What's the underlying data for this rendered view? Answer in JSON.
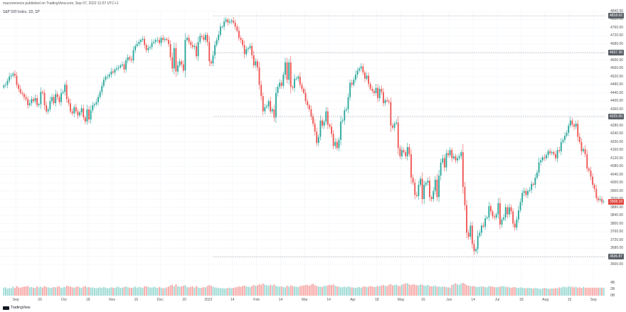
{
  "header": {
    "publisher": "macrorenecis published on TradingView.com, Sep 07, 2022 11:07 UTC+1",
    "symbol": "S&P 500 Index, 1D, SP"
  },
  "branding": {
    "logo_text": "TradingView"
  },
  "colors": {
    "up": "#26a69a",
    "down": "#ef5350",
    "up_volume": "#9ad9d3",
    "down_volume": "#f7a6a4",
    "grid": "#f0f3fa",
    "dotted": "#9aa0a8"
  },
  "price_tags": [
    {
      "label": "4818.62",
      "style": "grey",
      "value": 4818.62
    },
    {
      "label": "4637.30",
      "style": "grey",
      "value": 4637.3
    },
    {
      "label": "4325.00",
      "style": "grey",
      "value": 4325.0
    },
    {
      "label": "3908.19",
      "style": "red",
      "value": 3908.19
    },
    {
      "label": "3636.87",
      "style": "grey",
      "value": 3636.87
    }
  ],
  "chart_data": {
    "type": "candlestick",
    "title": "S&P 500 Index, 1D, SP",
    "ylim": [
      3600,
      4840
    ],
    "y_ticks": [
      4840,
      4800,
      4760,
      4720,
      4680,
      4640,
      4600,
      4560,
      4520,
      4480,
      4440,
      4400,
      4360,
      4320,
      4280,
      4240,
      4200,
      4160,
      4120,
      4080,
      4040,
      4000,
      3960,
      3920,
      3880,
      3840,
      3800,
      3760,
      3720,
      3680,
      3640,
      3600
    ],
    "volume_ticks": [
      "4B",
      "2B",
      "0B"
    ],
    "x_ticks": [
      "Sep",
      "20",
      "Oct",
      "18",
      "Nov",
      "15",
      "Dec",
      "20",
      "2022",
      "14",
      "Feb",
      "14",
      "Mar",
      "14",
      "Apr",
      "18",
      "May",
      "16",
      "Jun",
      "14",
      "Jul",
      "18",
      "Aug",
      "15",
      "Sep"
    ],
    "closes": [
      4477,
      4480,
      4500,
      4520,
      4525,
      4535,
      4525,
      4480,
      4460,
      4440,
      4435,
      4420,
      4410,
      4380,
      4390,
      4410,
      4400,
      4415,
      4380,
      4385,
      4445,
      4440,
      4380,
      4350,
      4360,
      4400,
      4420,
      4390,
      4435,
      4420,
      4395,
      4440,
      4445,
      4480,
      4410,
      4390,
      4350,
      4340,
      4370,
      4350,
      4330,
      4345,
      4365,
      4320,
      4300,
      4360,
      4310,
      4355,
      4380,
      4385,
      4395,
      4420,
      4445,
      4475,
      4505,
      4520,
      4520,
      4530,
      4545,
      4540,
      4555,
      4560,
      4565,
      4575,
      4580,
      4555,
      4600,
      4615,
      4605,
      4600,
      4650,
      4670,
      4680,
      4690,
      4700,
      4705,
      4675,
      4650,
      4660,
      4665,
      4685,
      4690,
      4700,
      4700,
      4685,
      4710,
      4700,
      4705,
      4700,
      4680,
      4615,
      4560,
      4660,
      4545,
      4575,
      4595,
      4580,
      4550,
      4700,
      4710,
      4690,
      4675,
      4665,
      4670,
      4620,
      4690,
      4720,
      4715,
      4700,
      4725,
      4690,
      4595,
      4585,
      4625,
      4675,
      4700,
      4725,
      4765,
      4765,
      4790,
      4800,
      4785,
      4790,
      4795,
      4785,
      4765,
      4745,
      4710,
      4700,
      4675,
      4630,
      4655,
      4660,
      4670,
      4625,
      4575,
      4595,
      4565,
      4480,
      4425,
      4350,
      4370,
      4375,
      4400,
      4350,
      4360,
      4320,
      4440,
      4470,
      4490,
      4475,
      4530,
      4590,
      4505,
      4590,
      4470,
      4465,
      4510,
      4510,
      4520,
      4480,
      4460,
      4440,
      4400,
      4380,
      4360,
      4325,
      4290,
      4250,
      4195,
      4225,
      4305,
      4280,
      4300,
      4350,
      4285,
      4275,
      4240,
      4180,
      4200,
      4170,
      4210,
      4300,
      4305,
      4355,
      4360,
      4420,
      4490,
      4480,
      4505,
      4530,
      4550,
      4560,
      4570,
      4540,
      4510,
      4525,
      4485,
      4460,
      4450,
      4440,
      4465,
      4415,
      4460,
      4445,
      4390,
      4405,
      4400,
      4395,
      4280,
      4270,
      4290,
      4295,
      4170,
      4130,
      4160,
      4150,
      4130,
      4175,
      4140,
      4025,
      4000,
      3940,
      3935,
      3990,
      4020,
      3920,
      3990,
      4000,
      4010,
      3930,
      3920,
      3960,
      4015,
      3930,
      4035,
      4100,
      4120,
      4075,
      4145,
      4135,
      4160,
      4120,
      4130,
      4110,
      4120,
      4130,
      4150,
      3980,
      3890,
      3755,
      3735,
      3790,
      3700,
      3665,
      3675,
      3740,
      3755,
      3790,
      3785,
      3825,
      3830,
      3885,
      3860,
      3835,
      3830,
      3845,
      3900,
      3795,
      3820,
      3830,
      3880,
      3845,
      3880,
      3860,
      3800,
      3780,
      3820,
      3865,
      3905,
      3950,
      3960,
      3940,
      3960,
      3965,
      3995,
      3990,
      4025,
      4050,
      4100,
      4110,
      4125,
      4120,
      4135,
      4155,
      4145,
      4150,
      4140,
      4120,
      4160,
      4155,
      4200,
      4210,
      4230,
      4245,
      4280,
      4305,
      4285,
      4275,
      4290,
      4225,
      4200,
      4155,
      4165,
      4140,
      4070,
      4060,
      4030,
      3990,
      3970,
      3925,
      3915,
      3920,
      3905,
      3908
    ],
    "volumes": [
      2.5,
      2.6,
      2.2,
      2.4,
      2.3,
      2.8,
      2.4,
      3.0,
      2.6,
      2.5,
      2.7,
      2.8,
      2.9,
      3.0,
      2.6,
      2.7,
      2.5,
      2.4,
      2.9,
      2.6,
      2.8,
      2.5,
      3.0,
      2.7,
      2.6,
      2.4,
      2.5,
      2.7,
      2.6,
      2.8,
      2.9,
      2.4,
      2.6,
      2.7,
      3.1,
      2.9,
      2.8,
      2.6,
      2.5,
      2.7,
      2.9,
      2.6,
      2.4,
      2.8,
      3.0,
      2.6,
      2.7,
      2.5,
      2.6,
      2.4,
      2.3,
      2.5,
      2.6,
      2.4,
      2.7,
      2.5,
      2.3,
      2.4,
      2.6,
      2.5,
      2.4,
      2.7,
      2.8,
      2.4,
      2.5,
      2.7,
      2.9,
      2.6,
      2.5,
      2.4,
      2.6,
      2.8,
      2.5,
      2.7,
      2.6,
      2.4,
      2.9,
      3.0,
      2.7,
      2.6,
      2.5,
      2.8,
      2.6,
      2.4,
      2.7,
      2.5,
      2.3,
      2.4,
      2.6,
      2.8,
      3.2,
      3.4,
      2.9,
      3.6,
      3.0,
      2.8,
      2.9,
      3.1,
      3.3,
      2.7,
      2.6,
      2.8,
      2.9,
      2.5,
      3.0,
      2.6,
      2.4,
      2.5,
      2.7,
      2.6,
      3.0,
      3.3,
      3.1,
      2.8,
      2.6,
      2.5,
      2.4,
      2.3,
      2.4,
      2.2,
      2.3,
      2.4,
      2.5,
      2.3,
      2.4,
      2.6,
      2.7,
      2.9,
      2.8,
      3.0,
      3.2,
      2.9,
      2.8,
      2.7,
      3.0,
      3.3,
      3.1,
      3.2,
      3.6,
      3.4,
      3.8,
      3.5,
      3.3,
      3.1,
      3.4,
      3.2,
      3.5,
      3.1,
      2.9,
      2.8,
      2.9,
      2.7,
      2.6,
      3.1,
      2.8,
      3.2,
      3.0,
      2.9,
      2.8,
      2.7,
      3.0,
      3.1,
      3.2,
      3.3,
      3.4,
      3.1,
      3.5,
      3.7,
      3.3,
      3.0,
      2.9,
      2.8,
      2.7,
      3.1,
      3.0,
      3.2,
      3.4,
      3.3,
      3.5,
      3.1,
      2.9,
      2.8,
      2.6,
      2.7,
      2.8,
      2.6,
      2.9,
      2.7,
      2.6,
      2.5,
      2.4,
      2.6,
      2.7,
      2.5,
      2.8,
      2.9,
      2.7,
      2.8,
      3.0,
      2.9,
      2.7,
      2.8,
      3.0,
      2.9,
      3.2,
      3.3,
      3.1,
      3.0,
      3.4,
      3.6,
      3.2,
      3.3,
      3.5,
      3.1,
      3.0,
      3.5,
      3.6,
      3.8,
      3.9,
      3.5,
      3.3,
      3.6,
      3.4,
      3.3,
      3.2,
      3.5,
      3.4,
      3.2,
      3.1,
      3.4,
      3.0,
      2.9,
      3.0,
      3.2,
      2.8,
      2.9,
      2.7,
      2.9,
      2.8,
      2.7,
      2.6,
      2.5,
      3.3,
      3.6,
      3.9,
      3.5,
      3.4,
      3.8,
      4.0,
      3.7,
      3.3,
      3.1,
      3.0,
      2.9,
      3.0,
      2.8,
      2.7,
      2.8,
      2.9,
      2.8,
      2.7,
      2.6,
      3.0,
      2.9,
      2.8,
      2.7,
      2.6,
      2.7,
      2.8,
      3.0,
      2.9,
      2.8,
      2.7,
      2.6,
      2.5,
      2.6,
      2.7,
      2.5,
      2.4,
      2.6,
      2.5,
      2.4,
      2.3,
      2.5,
      2.4,
      2.3,
      2.2,
      2.4,
      2.3,
      2.2,
      2.1,
      2.3,
      2.4,
      2.3,
      2.2,
      2.1,
      2.3,
      2.2,
      2.4,
      2.3,
      2.6,
      2.5,
      2.8,
      2.7,
      2.6,
      2.9,
      2.8,
      2.7,
      2.6,
      2.8,
      2.5,
      2.6,
      2.4,
      2.7
    ]
  }
}
